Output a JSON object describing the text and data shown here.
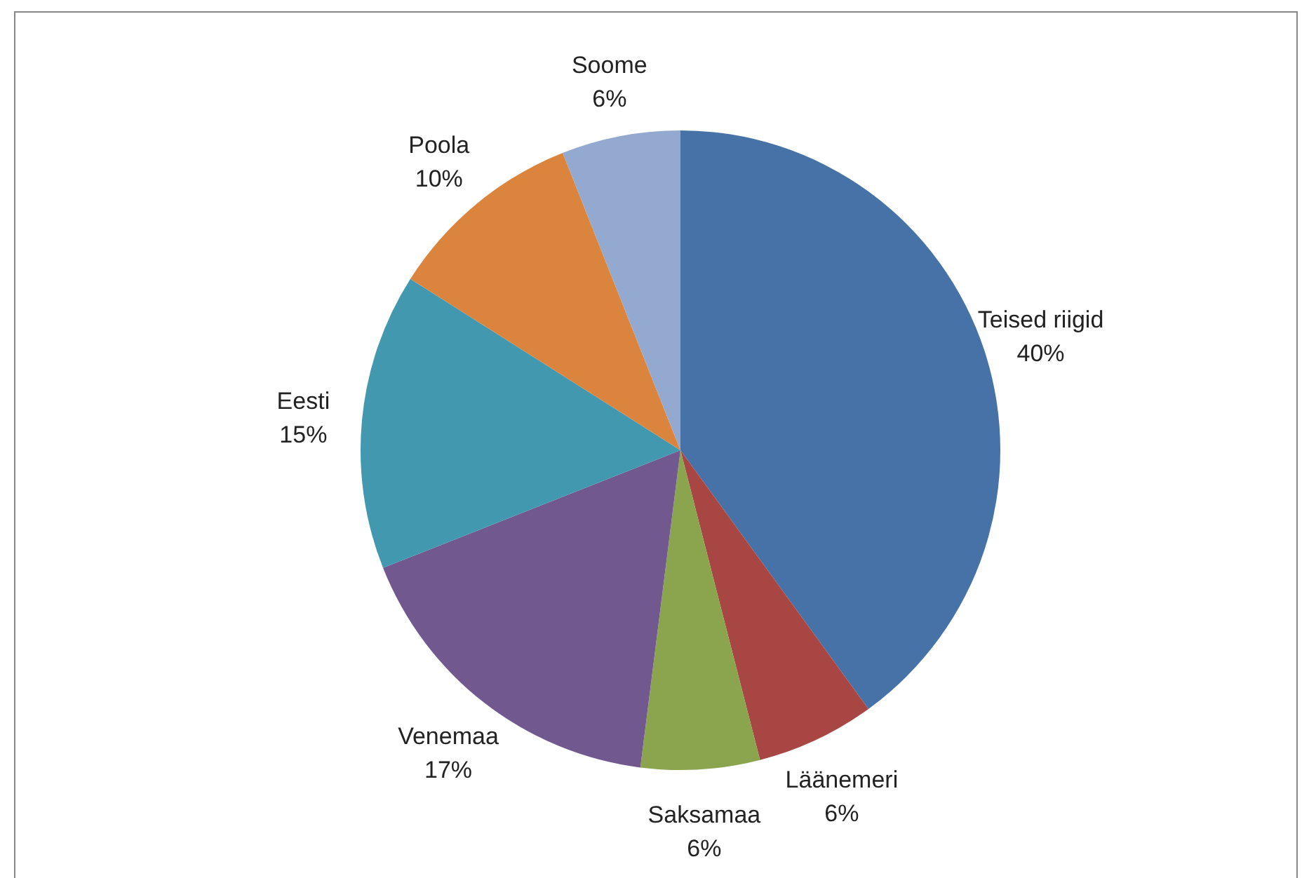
{
  "chart_data": {
    "type": "pie",
    "categories": [
      "Teised riigid",
      "Läänemeri",
      "Saksamaa",
      "Venemaa",
      "Eesti",
      "Poola",
      "Soome"
    ],
    "values": [
      40,
      6,
      6,
      17,
      15,
      10,
      6
    ],
    "value_labels": [
      "40%",
      "6%",
      "6%",
      "17%",
      "15%",
      "10%",
      "6%"
    ],
    "colors": [
      "#4672a8",
      "#a74643",
      "#8aa54d",
      "#71588f",
      "#4198af",
      "#db843d",
      "#93a9cf"
    ],
    "legend": false
  }
}
